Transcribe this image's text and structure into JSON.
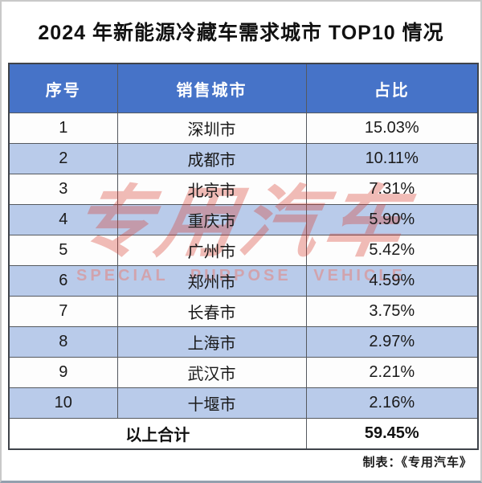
{
  "title": "2024 年新能源冷藏车需求城市 TOP10 情况",
  "chart_data": {
    "type": "table",
    "title": "2024 年新能源冷藏车需求城市 TOP10 情况",
    "columns": [
      "序号",
      "销售城市",
      "占比"
    ],
    "unit": "%",
    "rows": [
      [
        1,
        "深圳市",
        15.03
      ],
      [
        2,
        "成都市",
        10.11
      ],
      [
        3,
        "北京市",
        7.31
      ],
      [
        4,
        "重庆市",
        5.9
      ],
      [
        5,
        "广州市",
        5.42
      ],
      [
        6,
        "郑州市",
        4.59
      ],
      [
        7,
        "长春市",
        3.75
      ],
      [
        8,
        "上海市",
        2.97
      ],
      [
        9,
        "武汉市",
        2.21
      ],
      [
        10,
        "十堰市",
        2.16
      ]
    ],
    "total": {
      "label": "以上合计",
      "value": 59.45
    }
  },
  "watermark": {
    "logo": "专用汽车",
    "subtitle": "SPECIAL PURPOSE VEHICLE"
  },
  "caption": "制表：《专用汽车》",
  "colors": {
    "header_bg": "#4673C8",
    "header_text": "#FFFFFF",
    "alt_row_bg": "#B9CBEA",
    "grid_line": "#55595F",
    "outer_border": "#3F434A",
    "watermark_red": "#D93A2B"
  }
}
